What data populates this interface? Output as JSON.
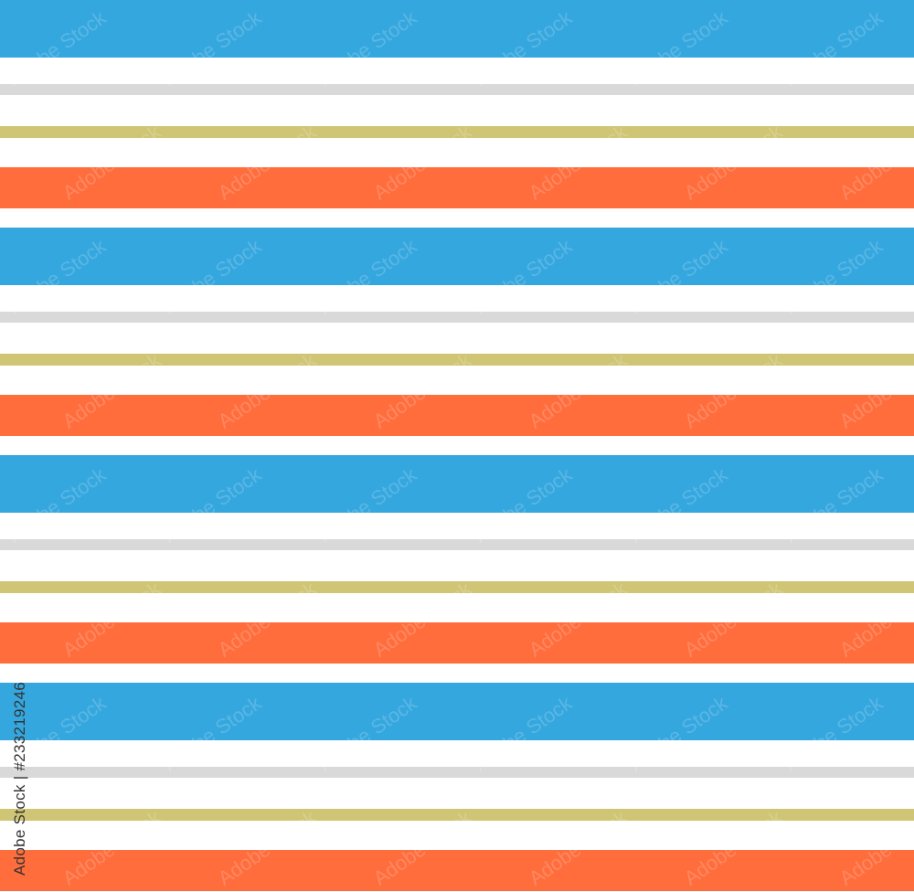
{
  "image": {
    "pattern": "horizontal stripes",
    "stripe_sequence": [
      {
        "name": "blue",
        "color": "#35a7df"
      },
      {
        "name": "gray",
        "color": "#d9d9d9"
      },
      {
        "name": "gold",
        "color": "#cfc574"
      },
      {
        "name": "orange",
        "color": "#ff6d3d"
      }
    ],
    "background_color": "#ffffff"
  },
  "credit": {
    "text": "Adobe Stock | #233219246"
  },
  "watermark": {
    "text": "Adobe Stock"
  }
}
